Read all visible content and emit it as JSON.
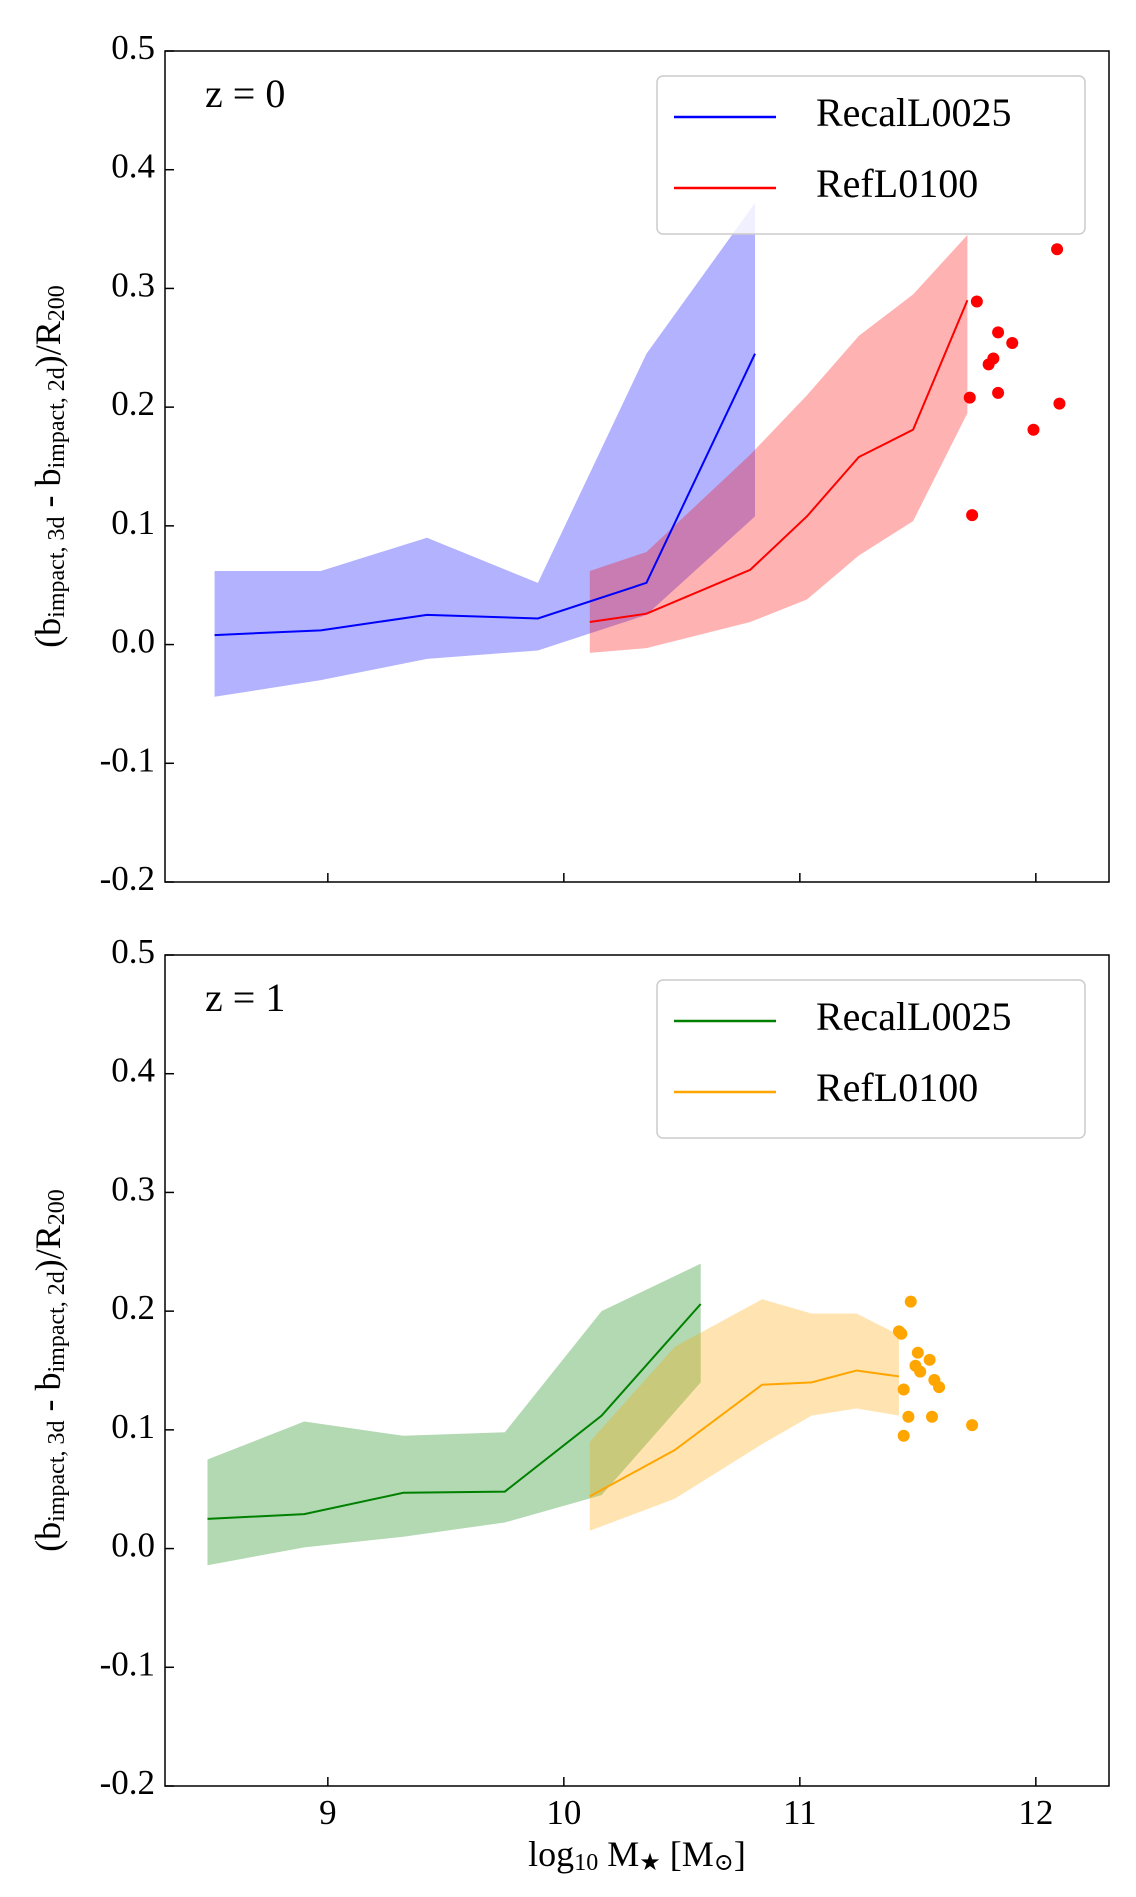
{
  "chart_data": [
    {
      "type": "line",
      "annotation": "z = 0",
      "legend": "upper right",
      "ylabel_parts": [
        "(b",
        "impact, 3d",
        " - b",
        "impact, 2d",
        ")/R",
        "200"
      ],
      "xlim": [
        8.31,
        12.31
      ],
      "ylim": [
        -0.2,
        0.5
      ],
      "xticks": [
        9,
        10,
        11,
        12
      ],
      "yticks": [
        0.5,
        0.4,
        0.3,
        0.2,
        0.1,
        {
          "value": 0,
          "label": "0.0"
        },
        -0.1,
        -0.2
      ],
      "series": [
        {
          "name": "RecalL0025",
          "color": "#0000ff",
          "x": [
            8.52,
            8.97,
            9.42,
            9.89,
            10.35,
            10.81
          ],
          "values": [
            0.008,
            0.012,
            0.025,
            0.022,
            0.052,
            0.245
          ],
          "upper": [
            0.062,
            0.062,
            0.09,
            0.052,
            0.245,
            0.372
          ],
          "lower": [
            -0.044,
            -0.03,
            -0.012,
            -0.005,
            0.025,
            0.108
          ]
        },
        {
          "name": "RefL0100",
          "color": "#ff0000",
          "x": [
            10.11,
            10.35,
            10.79,
            11.03,
            11.25,
            11.48,
            11.71
          ],
          "values": [
            0.019,
            0.026,
            0.063,
            0.108,
            0.158,
            0.181,
            0.29
          ],
          "upper": [
            0.062,
            0.078,
            0.16,
            0.21,
            0.26,
            0.295,
            0.345
          ],
          "lower": [
            -0.007,
            -0.003,
            0.019,
            0.038,
            0.075,
            0.104,
            0.195
          ],
          "points": {
            "x": [
              11.75,
              11.84,
              11.9,
              11.82,
              11.8,
              11.84,
              11.72,
              11.99,
              12.1,
              12.09,
              11.73
            ],
            "values": [
              0.289,
              0.263,
              0.254,
              0.241,
              0.236,
              0.212,
              0.208,
              0.181,
              0.203,
              0.333,
              0.109
            ]
          }
        }
      ]
    },
    {
      "type": "line",
      "annotation": "z = 1",
      "legend": "upper right",
      "ylabel_parts": [
        "(b",
        "impact, 3d",
        " - b",
        "impact, 2d",
        ")/R",
        "200"
      ],
      "xlabel_parts": [
        "log",
        "10",
        " M",
        "★",
        " [M",
        "⊙",
        "]"
      ],
      "xlim": [
        8.31,
        12.31
      ],
      "ylim": [
        -0.2,
        0.5
      ],
      "xticks": [
        9,
        10,
        11,
        12
      ],
      "yticks": [
        0.5,
        0.4,
        0.3,
        0.2,
        0.1,
        {
          "value": 0,
          "label": "0.0"
        },
        -0.1,
        -0.2
      ],
      "series": [
        {
          "name": "RecalL0025",
          "color": "#008000",
          "x": [
            8.49,
            8.9,
            9.32,
            9.75,
            10.16,
            10.58
          ],
          "values": [
            0.025,
            0.029,
            0.047,
            0.048,
            0.112,
            0.206
          ],
          "upper": [
            0.075,
            0.107,
            0.095,
            0.098,
            0.2,
            0.24
          ],
          "lower": [
            -0.014,
            0.001,
            0.01,
            0.022,
            0.045,
            0.14
          ]
        },
        {
          "name": "RefL0100",
          "color": "#ffa500",
          "x": [
            10.11,
            10.47,
            10.84,
            11.05,
            11.24,
            11.42
          ],
          "values": [
            0.044,
            0.083,
            0.138,
            0.14,
            0.15,
            0.145
          ],
          "upper": [
            0.09,
            0.17,
            0.21,
            0.198,
            0.198,
            0.18
          ],
          "lower": [
            0.015,
            0.042,
            0.088,
            0.112,
            0.118,
            0.112
          ],
          "points": {
            "x": [
              11.47,
              11.42,
              11.43,
              11.5,
              11.55,
              11.49,
              11.51,
              11.57,
              11.44,
              11.59,
              11.46,
              11.56,
              11.73,
              11.44
            ],
            "values": [
              0.208,
              0.183,
              0.181,
              0.165,
              0.159,
              0.154,
              0.149,
              0.142,
              0.134,
              0.136,
              0.111,
              0.111,
              0.104,
              0.095
            ]
          }
        }
      ]
    }
  ]
}
